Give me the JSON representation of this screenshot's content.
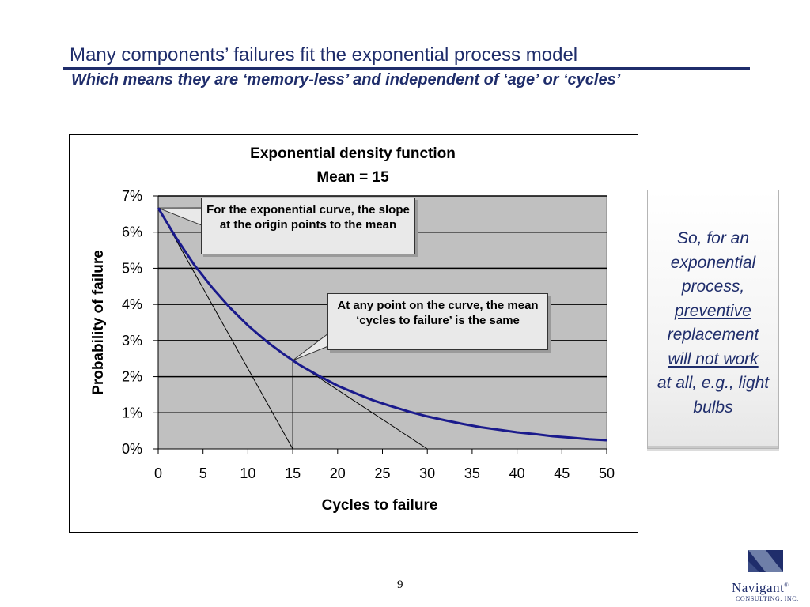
{
  "slide": {
    "title": "Many components’ failures fit the exponential process model",
    "subtitle": "Which means they are ‘memory-less’ and independent of ‘age’ or ‘cycles’",
    "page_number": "9"
  },
  "callouts": {
    "slope": "For the exponential curve, the slope at the origin points to the mean",
    "mean": "At any point on the curve, the mean ‘cycles to failure’ is the same"
  },
  "side_note": {
    "line1": "So, for an exponential process,",
    "underline1": "preventive",
    "line2": "replacement",
    "underline2": "will not work",
    "line3": "at all, e.g., light bulbs"
  },
  "logo": {
    "name": "Navigant",
    "trademark": "®",
    "tagline": "CONSULTING, INC."
  },
  "colors": {
    "title": "#1f2d6b",
    "curve": "#1a1a8c",
    "plot_bg": "#c0c0c0"
  },
  "chart_data": {
    "type": "line",
    "title": "Exponential density function",
    "subtitle": "Mean = 15",
    "xlabel": "Cycles to failure",
    "ylabel": "Probability of failure",
    "xlim": [
      0,
      50
    ],
    "ylim": [
      0,
      0.07
    ],
    "x_ticks": [
      0,
      5,
      10,
      15,
      20,
      25,
      30,
      35,
      40,
      45,
      50
    ],
    "y_ticks": [
      0,
      0.01,
      0.02,
      0.03,
      0.04,
      0.05,
      0.06,
      0.07
    ],
    "y_tick_labels": [
      "0%",
      "1%",
      "2%",
      "3%",
      "4%",
      "5%",
      "6%",
      "7%"
    ],
    "grid": "horizontal",
    "legend": "none",
    "series": [
      {
        "x": [
          0,
          2,
          4,
          6,
          8,
          10,
          12,
          14,
          15,
          16,
          18,
          20,
          22,
          24,
          26,
          28,
          30,
          32,
          34,
          36,
          38,
          40,
          42,
          44,
          46,
          48,
          50
        ],
        "values": [
          0.0667,
          0.0584,
          0.051,
          0.0447,
          0.0391,
          0.0342,
          0.0299,
          0.0262,
          0.0245,
          0.0229,
          0.0201,
          0.0175,
          0.0154,
          0.0134,
          0.0118,
          0.0103,
          0.009,
          0.0079,
          0.0069,
          0.006,
          0.0053,
          0.0046,
          0.0041,
          0.0035,
          0.0031,
          0.0027,
          0.0024
        ]
      }
    ],
    "tangent_lines": [
      {
        "from": [
          0,
          0.0667
        ],
        "to": [
          15,
          0
        ]
      },
      {
        "from": [
          15,
          0.0245
        ],
        "to": [
          30,
          0
        ]
      }
    ],
    "drop_line_x": 15
  }
}
